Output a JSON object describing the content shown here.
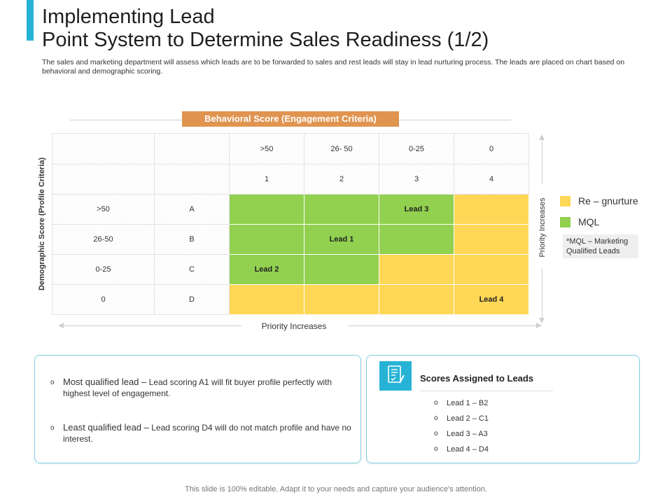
{
  "title_line1": "Implementing Lead",
  "title_line2": "Point System to Determine Sales Readiness (1/2)",
  "subtitle": "The sales and marketing department will assess which leads are to be forwarded to sales and rest leads will stay in lead nurturing process. The leads are placed on chart based on behavioral and demographic scoring.",
  "behavioral_banner": "Behavioral Score (Engagement Criteria)",
  "demographic_label": "Demographic Score (Profile Criteria)",
  "grid_header_rows": [
    [
      "",
      "",
      ">50",
      "26- 50",
      "0-25",
      "0"
    ],
    [
      "",
      "",
      "1",
      "2",
      "3",
      "4"
    ]
  ],
  "grid_rows": [
    {
      "range": ">50",
      "grade": "A",
      "cells": [
        {
          "text": "",
          "status": "green"
        },
        {
          "text": "",
          "status": "green"
        },
        {
          "text": "Lead 3",
          "status": "green"
        },
        {
          "text": "",
          "status": "yellow"
        }
      ]
    },
    {
      "range": "26-50",
      "grade": "B",
      "cells": [
        {
          "text": "",
          "status": "green"
        },
        {
          "text": "Lead 1",
          "status": "green"
        },
        {
          "text": "",
          "status": "green"
        },
        {
          "text": "",
          "status": "yellow"
        }
      ]
    },
    {
      "range": "0-25",
      "grade": "C",
      "cells": [
        {
          "text": "Lead 2",
          "status": "green"
        },
        {
          "text": "",
          "status": "green"
        },
        {
          "text": "",
          "status": "yellow"
        },
        {
          "text": "",
          "status": "yellow"
        }
      ]
    },
    {
      "range": "0",
      "grade": "D",
      "cells": [
        {
          "text": "",
          "status": "yellow"
        },
        {
          "text": "",
          "status": "yellow"
        },
        {
          "text": "",
          "status": "yellow"
        },
        {
          "text": "Lead 4",
          "status": "yellow"
        }
      ]
    }
  ],
  "x_axis_label": "Priority Increases",
  "y_axis_label": "Priority Increases",
  "legend": [
    {
      "label": "Re – gnurture",
      "color": "#ffd756"
    },
    {
      "label": "MQL",
      "color": "#92d050"
    }
  ],
  "mql_note": "*MQL – Marketing Qualified Leads",
  "most_qualified_title": "Most qualified lead –",
  "most_qualified_text": "Lead scoring A1 will fit buyer profile perfectly with highest level of engagement.",
  "least_qualified_title": "Least qualified lead –",
  "least_qualified_text": "Lead scoring D4 will do not match profile and have no interest.",
  "bullet_glyph": "o",
  "scores_title": "Scores Assigned to Leads",
  "scores": [
    "Lead 1 – B2",
    "Lead 2 – C1",
    "Lead 3 – A3",
    "Lead 4 – D4"
  ],
  "scores_icon": "checklist-icon",
  "accent_color": "#27b3d6",
  "footer": "This slide is 100% editable. Adapt it to your needs and capture your audience's attention."
}
